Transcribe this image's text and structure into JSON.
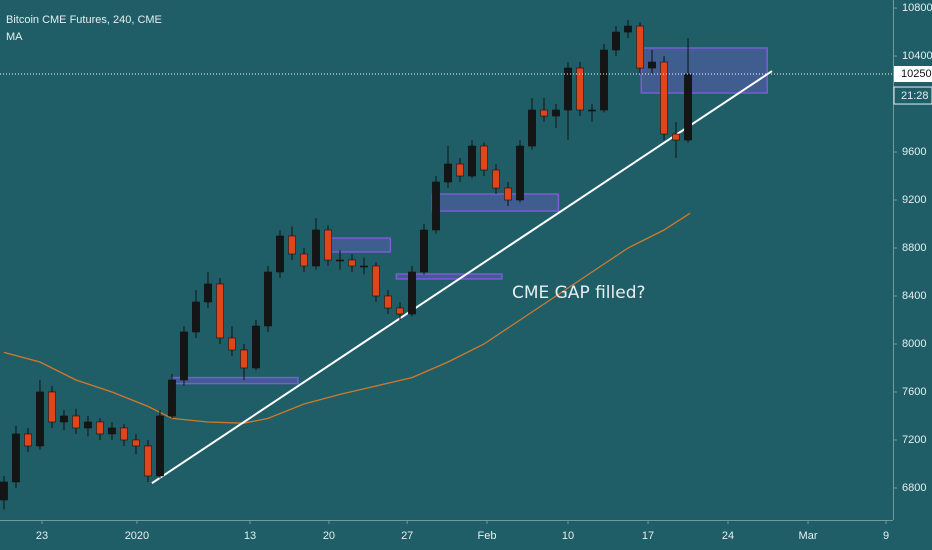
{
  "chart_data": {
    "type": "candlestick",
    "title": "Bitcoin CME Futures, 240, CME",
    "indicator_label": "MA",
    "up_color": "#151515",
    "down_color": "#e0461c",
    "ylim": [
      6533,
      10867
    ],
    "yticks": [
      6800,
      7200,
      7600,
      8000,
      8400,
      8800,
      9200,
      9600,
      10400,
      10800
    ],
    "xlim": [
      -0.33,
      74.08
    ],
    "xticks": [
      {
        "value": 3.17,
        "label": "23"
      },
      {
        "value": 11.08,
        "label": "2020"
      },
      {
        "value": 20.5,
        "label": "13"
      },
      {
        "value": 27.08,
        "label": "20"
      },
      {
        "value": 33.6,
        "label": "27"
      },
      {
        "value": 40.25,
        "label": "Feb"
      },
      {
        "value": 47,
        "label": "10"
      },
      {
        "value": 53.67,
        "label": "17"
      },
      {
        "value": 60.33,
        "label": "24"
      },
      {
        "value": 67,
        "label": "Mar"
      },
      {
        "value": 73.5,
        "label": "9"
      }
    ],
    "open": [
      6700,
      6850,
      7250,
      7150,
      7600,
      7350,
      7400,
      7300,
      7350,
      7250,
      7300,
      7200,
      7150,
      6900,
      7400,
      7700,
      8100,
      8350,
      8500,
      8050,
      7950,
      7800,
      8150,
      8600,
      8900,
      8750,
      8650,
      8950,
      8700,
      8700,
      8650,
      8650,
      8400,
      8300,
      8250,
      8600,
      8950,
      9350,
      9500,
      9400,
      9650,
      9450,
      9300,
      9200,
      9650,
      9950,
      9900,
      9950,
      10300,
      9950,
      9950,
      10450,
      10600,
      10650,
      10300,
      10350,
      9750,
      9700
    ],
    "high": [
      6900,
      7320,
      7300,
      7700,
      7650,
      7450,
      7460,
      7400,
      7380,
      7350,
      7330,
      7250,
      7200,
      7450,
      7750,
      8150,
      8450,
      8600,
      8550,
      8150,
      8000,
      8200,
      8650,
      8950,
      8980,
      8800,
      9050,
      8990,
      8780,
      8750,
      8720,
      8680,
      8450,
      8350,
      8650,
      9000,
      9400,
      9650,
      9550,
      9700,
      9680,
      9500,
      9350,
      9700,
      10050,
      10050,
      10000,
      10350,
      10350,
      10000,
      10500,
      10650,
      10700,
      10680,
      10450,
      10400,
      9850,
      10550
    ],
    "low": [
      6620,
      6800,
      7100,
      7120,
      7300,
      7280,
      7250,
      7230,
      7200,
      7200,
      7150,
      7080,
      6850,
      6880,
      7380,
      7650,
      8050,
      8300,
      8000,
      7900,
      7700,
      7780,
      8100,
      8550,
      8700,
      8600,
      8620,
      8650,
      8620,
      8600,
      8580,
      8350,
      8250,
      8200,
      8230,
      8580,
      8920,
      9300,
      9350,
      9380,
      9400,
      9250,
      9150,
      9180,
      9620,
      9850,
      9800,
      9700,
      9900,
      9850,
      9930,
      10400,
      10550,
      10250,
      10250,
      9700,
      9550,
      9680
    ],
    "close": [
      6850,
      7250,
      7150,
      7600,
      7350,
      7400,
      7300,
      7350,
      7250,
      7300,
      7200,
      7150,
      6900,
      7400,
      7700,
      8100,
      8350,
      8500,
      8050,
      7950,
      7800,
      8150,
      8600,
      8900,
      8750,
      8650,
      8950,
      8700,
      8700,
      8650,
      8650,
      8400,
      8300,
      8250,
      8600,
      8950,
      9350,
      9500,
      9400,
      9650,
      9450,
      9300,
      9200,
      9650,
      9950,
      9900,
      9950,
      10300,
      9950,
      9950,
      10450,
      10600,
      10650,
      10300,
      10350,
      9750,
      9700,
      10250
    ],
    "ma": {
      "color": "#d2782a",
      "x": [
        0,
        3,
        6,
        9,
        12,
        14,
        17,
        20,
        22,
        25,
        28,
        31,
        34,
        37,
        40,
        43,
        46,
        49,
        52,
        55,
        57.17
      ],
      "values": [
        7930,
        7850,
        7700,
        7600,
        7480,
        7380,
        7350,
        7340,
        7380,
        7500,
        7580,
        7650,
        7720,
        7850,
        8000,
        8200,
        8400,
        8600,
        8800,
        8950,
        9090
      ]
    },
    "trendline": {
      "color": "#ffffff",
      "x": [
        12.33,
        64
      ],
      "values": [
        6840,
        10275
      ]
    },
    "zones": [
      {
        "x": [
          14,
          24.5
        ],
        "y": [
          7670,
          7720
        ]
      },
      {
        "x": [
          26.75,
          32.2
        ],
        "y": [
          8767,
          8883
        ]
      },
      {
        "x": [
          32.7,
          41.5
        ],
        "y": [
          8542,
          8583
        ]
      },
      {
        "x": [
          35.7,
          46.2
        ],
        "y": [
          9108,
          9250
        ]
      },
      {
        "x": [
          53.1,
          63.6
        ],
        "y": [
          10092,
          10467
        ]
      }
    ],
    "zone_color": "#7b5bd6",
    "annotation": "CME GAP filled?",
    "annotation_at": [
      42.33,
      8425
    ],
    "last_price": 10250,
    "last_price_label": "10250",
    "countdown": "21:28"
  }
}
